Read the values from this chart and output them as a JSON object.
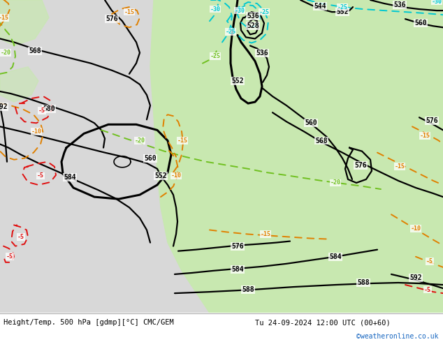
{
  "title_left": "Height/Temp. 500 hPa [gdmp][°C] CMC/GEM",
  "title_right": "Tu 24-09-2024 12:00 UTC (00+60)",
  "credit": "©weatheronline.co.uk",
  "bg_gray": "#d8d8d8",
  "land_green": "#c8e8b0",
  "land_gray": "#b8b8b8",
  "credit_color": "#1565C0",
  "c_black": "#000000",
  "c_cyan": "#00c8d0",
  "c_green": "#70c020",
  "c_orange": "#e08000",
  "c_red": "#e01010",
  "figsize": [
    6.34,
    4.9
  ],
  "dpi": 100
}
